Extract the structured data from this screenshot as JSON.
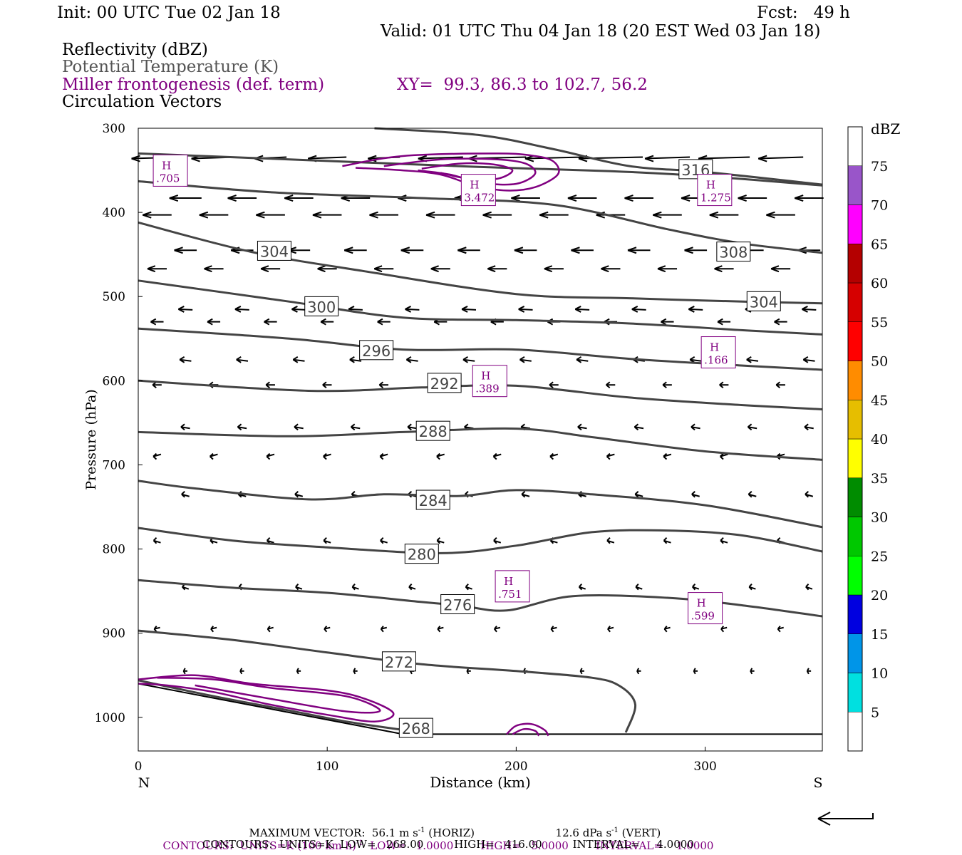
{
  "header": {
    "init": "Init: 00 UTC Tue 02 Jan 18",
    "fcst": "Fcst:   49 h",
    "valid": "Valid: 01 UTC Thu 04 Jan 18 (20 EST Wed 03 Jan 18)",
    "field1": "Reflectivity (dBZ)",
    "field2": "Potential Temperature (K)",
    "field3": "Miller frontogenesis (def. term)",
    "xy": "XY=  99.3, 86.3 to 102.7, 56.2",
    "field4": "Circulation Vectors"
  },
  "colors": {
    "theta": "#444444",
    "frontogenesis": "#800080",
    "vectors": "#000000",
    "dbz_scale": [
      "#ffffff",
      "#00e0e0",
      "#0095e8",
      "#0000e0",
      "#00ff00",
      "#00c800",
      "#008c00",
      "#ffff00",
      "#e6be00",
      "#ff8c00",
      "#ff0000",
      "#d60000",
      "#b40000",
      "#ff00ff",
      "#9955c9",
      "#ffffff"
    ]
  },
  "chart_data": {
    "type": "cross-section",
    "xlabel": "Distance (km)",
    "ylabel": "Pressure (hPa)",
    "xlim": [
      0,
      362
    ],
    "ylim": [
      1040,
      300
    ],
    "x_ticks": [
      "0",
      "100",
      "200",
      "300"
    ],
    "x_tick_values": [
      0,
      100,
      200,
      300
    ],
    "y_ticks": [
      "300",
      "400",
      "500",
      "600",
      "700",
      "800",
      "900",
      "1000"
    ],
    "y_tick_values": [
      300,
      400,
      500,
      600,
      700,
      800,
      900,
      1000
    ],
    "left_end_label": "N",
    "right_end_label": "S",
    "theta_contours": [
      {
        "label": "268",
        "label_at": [
          147,
          1013
        ],
        "points": [
          [
            0,
            956
          ],
          [
            40,
            975
          ],
          [
            80,
            992
          ],
          [
            110,
            1005
          ],
          [
            140,
            1015
          ]
        ]
      },
      {
        "label": "272",
        "label_at": [
          138,
          934
        ],
        "points": [
          [
            0,
            897
          ],
          [
            50,
            908
          ],
          [
            100,
            923
          ],
          [
            150,
            937
          ],
          [
            200,
            945
          ],
          [
            240,
            953
          ],
          [
            255,
            963
          ],
          [
            263,
            985
          ],
          [
            258,
            1018
          ]
        ]
      },
      {
        "label": "276",
        "label_at": [
          169,
          866
        ],
        "points": [
          [
            0,
            837
          ],
          [
            50,
            846
          ],
          [
            100,
            852
          ],
          [
            150,
            863
          ],
          [
            170,
            867
          ],
          [
            195,
            873
          ],
          [
            230,
            856
          ],
          [
            280,
            858
          ],
          [
            320,
            867
          ],
          [
            362,
            880
          ]
        ]
      },
      {
        "label": "280",
        "label_at": [
          150,
          806
        ],
        "points": [
          [
            0,
            775
          ],
          [
            50,
            790
          ],
          [
            100,
            798
          ],
          [
            160,
            805
          ],
          [
            200,
            796
          ],
          [
            240,
            780
          ],
          [
            280,
            778
          ],
          [
            320,
            784
          ],
          [
            362,
            803
          ]
        ]
      },
      {
        "label": "284",
        "label_at": [
          156,
          742
        ],
        "points": [
          [
            0,
            719
          ],
          [
            30,
            728
          ],
          [
            90,
            741
          ],
          [
            130,
            735
          ],
          [
            170,
            737
          ],
          [
            200,
            730
          ],
          [
            240,
            735
          ],
          [
            300,
            748
          ],
          [
            362,
            774
          ]
        ]
      },
      {
        "label": "288",
        "label_at": [
          156,
          660
        ],
        "points": [
          [
            0,
            661
          ],
          [
            80,
            666
          ],
          [
            140,
            661
          ],
          [
            200,
            657
          ],
          [
            240,
            667
          ],
          [
            300,
            684
          ],
          [
            362,
            694
          ]
        ]
      },
      {
        "label": "292",
        "label_at": [
          162,
          603
        ],
        "points": [
          [
            0,
            600
          ],
          [
            90,
            612
          ],
          [
            150,
            608
          ],
          [
            200,
            606
          ],
          [
            260,
            620
          ],
          [
            320,
            629
          ],
          [
            362,
            634
          ]
        ]
      },
      {
        "label": "296",
        "label_at": [
          126,
          564
        ],
        "points": [
          [
            0,
            538
          ],
          [
            80,
            550
          ],
          [
            140,
            563
          ],
          [
            200,
            563
          ],
          [
            260,
            574
          ],
          [
            320,
            582
          ],
          [
            362,
            587
          ]
        ]
      },
      {
        "label": "300",
        "label_at": [
          97,
          512
        ],
        "points": [
          [
            0,
            481
          ],
          [
            80,
            506
          ],
          [
            140,
            525
          ],
          [
            200,
            528
          ],
          [
            260,
            532
          ],
          [
            320,
            540
          ],
          [
            362,
            545
          ]
        ]
      },
      {
        "label": "304",
        "label_at": [
          72,
          446
        ],
        "points": [
          [
            0,
            412
          ],
          [
            60,
            447
          ],
          [
            120,
            470
          ],
          [
            200,
            497
          ],
          [
            260,
            502
          ],
          [
            320,
            506
          ],
          [
            362,
            508
          ]
        ]
      },
      {
        "label": "304",
        "label_at": [
          331,
          506
        ],
        "points": []
      },
      {
        "label": "308",
        "label_at": [
          315,
          447
        ],
        "points": [
          [
            0,
            363
          ],
          [
            70,
            376
          ],
          [
            150,
            383
          ],
          [
            220,
            391
          ],
          [
            280,
            420
          ],
          [
            320,
            437
          ],
          [
            362,
            448
          ]
        ]
      },
      {
        "label": "316",
        "label_at": [
          295,
          349
        ],
        "points": [
          [
            0,
            330
          ],
          [
            80,
            337
          ],
          [
            180,
            346
          ],
          [
            250,
            351
          ],
          [
            300,
            357
          ],
          [
            362,
            368
          ]
        ]
      },
      {
        "label": "",
        "label_at": null,
        "points": [
          [
            125,
            300
          ],
          [
            180,
            308
          ],
          [
            220,
            325
          ],
          [
            260,
            345
          ],
          [
            300,
            352
          ],
          [
            362,
            367
          ]
        ]
      }
    ],
    "frontogenesis_maxima": [
      {
        "label": "H",
        "value": ".705",
        "at": [
          17,
          352
        ]
      },
      {
        "label": "H",
        "value": "3.472",
        "at": [
          180,
          375
        ]
      },
      {
        "label": "H",
        "value": "1.275",
        "at": [
          305,
          375
        ]
      },
      {
        "label": "H",
        "value": ".166",
        "at": [
          307,
          568
        ]
      },
      {
        "label": "H",
        "value": ".389",
        "at": [
          186,
          602
        ]
      },
      {
        "label": "H",
        "value": ".751",
        "at": [
          198,
          846
        ]
      },
      {
        "label": "H",
        "value": ".599",
        "at": [
          300,
          872
        ]
      }
    ],
    "colorbar": {
      "title": "dBZ",
      "labels": [
        "5",
        "10",
        "15",
        "20",
        "25",
        "30",
        "35",
        "40",
        "45",
        "50",
        "55",
        "60",
        "65",
        "70",
        "75"
      ]
    },
    "footer": {
      "max_vector": "MAXIMUM VECTOR:  56.1 m s",
      "max_vector_exp": "-1",
      "max_vector_h": " (HORIZ)",
      "vert": "12.6 dPa s",
      "vert_exp": "-1",
      "vert_tail": " (VERT)",
      "contours1": "CONTOURS:  UNITS=K (100 km h)",
      "contours1_exp": "-1",
      "contours1_tail": "  LOW=   1.0000        HIGH=   5.0000        INTERVAL=    1.0000",
      "contours2": "CONTOURS:  UNITS=K  LOW=   268.00         HIGH=   416.00         INTERVAL=     4.0000"
    }
  }
}
